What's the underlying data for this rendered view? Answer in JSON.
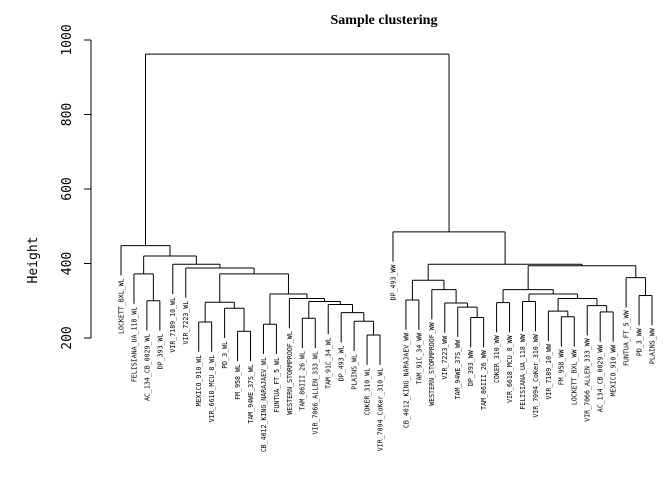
{
  "chart_data": {
    "type": "dendrogram",
    "title": "Sample clustering",
    "xlabel": "",
    "ylabel": "Height",
    "ylim": [
      200,
      1000
    ],
    "y_ticks": [
      200,
      400,
      600,
      800,
      1000
    ],
    "leaves": [
      "LOCKETT_BXL_WL",
      "FELISIANA_UA_118_WL",
      "AC_134_CB_0029_WL",
      "DP_393_WL",
      "VIR_7189_10_WL",
      "VIR_7223_WL",
      "MEXICO_910_WL",
      "VIR_6618_MCU_8_WL",
      "PD_3_WL",
      "FM_958_WL",
      "TAM_94WE_37S_WL",
      "CB_4012_KING_NARAJAEV_WL",
      "FUNTUA_FT_5_WL",
      "WESTERN_STORMPROOF_WL",
      "TAM_86III_26_WL",
      "VIR_7066_ALLEN_333_WL",
      "TAM_91C_34_WL",
      "DP_493_WL",
      "PLAINS_WL",
      "COKER_310_WL",
      "VIR_7094_CoKer_310_WL",
      "DP_493_WW",
      "CB_4012_KING_NARAJAEV_WW",
      "TAM_91C_34_WW",
      "WESTERN_STORMPROOF_WW",
      "VIR_7223_WW",
      "TAM_94WE_37S_WW",
      "DP_393_WW",
      "TAM_86III_26_WW",
      "COKER_310_WW",
      "VIR_6618_MCU_8_WW",
      "FELISIANA_UA_118_WW",
      "VIR_7094_CoKer_310_WW",
      "VIR_7189_10_WW",
      "FM_958_WW",
      "LOCKETT_BXL_WW",
      "VIR_7066_ALLEN_333_WW",
      "AC_134_CB_0029_WW",
      "MEXICO_910_WW",
      "FUNTUA_FT_5_WW",
      "PD_3_WW",
      "PLAINS_WW"
    ],
    "merges": [
      {
        "a": "VIR_7094_CoKer_310_WL",
        "b": "COKER_310_WL",
        "height": 208
      },
      {
        "a": "m1",
        "b": "PLAINS_WL",
        "height": 245
      },
      {
        "a": "m2",
        "b": "DP_493_WL",
        "height": 268
      },
      {
        "a": "m3",
        "b": "TAM_91C_34_WL",
        "height": 290
      },
      {
        "a": "VIR_7066_ALLEN_333_WL",
        "b": "TAM_86III_26_WL",
        "height": 253
      },
      {
        "a": "m5",
        "b": "m4",
        "height": 298
      },
      {
        "a": "m6",
        "b": "WESTERN_STORMPROOF_WL",
        "height": 306
      },
      {
        "a": "FUNTUA_FT_5_WL",
        "b": "CB_4012_KING_NARAJAEV_WL",
        "height": 237
      },
      {
        "a": "m8",
        "b": "m7",
        "height": 318
      },
      {
        "a": "TAM_94WE_37S_WL",
        "b": "FM_958_WL",
        "height": 218
      },
      {
        "a": "m10",
        "b": "PD_3_WL",
        "height": 280
      },
      {
        "a": "MEXICO_910_WL",
        "b": "VIR_6618_MCU_8_WL",
        "height": 243
      },
      {
        "a": "m12",
        "b": "m11",
        "height": 296
      },
      {
        "a": "m13",
        "b": "m9",
        "height": 372
      },
      {
        "a": "m14",
        "b": "VIR_7223_WL",
        "height": 388
      },
      {
        "a": "m15",
        "b": "VIR_7189_10_WL",
        "height": 398
      },
      {
        "a": "AC_134_CB_0029_WL",
        "b": "DP_393_WL",
        "height": 300
      },
      {
        "a": "m17",
        "b": "FELISIANA_UA_118_WL",
        "height": 372
      },
      {
        "a": "m18",
        "b": "m16",
        "height": 420
      },
      {
        "a": "m19",
        "b": "LOCKETT_BXL_WL",
        "height": 448
      },
      {
        "a": "TAM_91C_34_WW",
        "b": "CB_4012_KING_NARAJAEV_WW",
        "height": 302
      },
      {
        "a": "TAM_86III_26_WW",
        "b": "DP_393_WW",
        "height": 255
      },
      {
        "a": "m22",
        "b": "TAM_94WE_37S_WW",
        "height": 283
      },
      {
        "a": "m23",
        "b": "VIR_7223_WW",
        "height": 294
      },
      {
        "a": "m24",
        "b": "WESTERN_STORMPROOF_WW",
        "height": 330
      },
      {
        "a": "m25",
        "b": "m21",
        "height": 355
      },
      {
        "a": "COKER_310_WW",
        "b": "VIR_6618_MCU_8_WW",
        "height": 295
      },
      {
        "a": "FELISIANA_UA_118_WW",
        "b": "VIR_7094_CoKer_310_WW",
        "height": 298
      },
      {
        "a": "LOCKETT_BXL_WW",
        "b": "FM_958_WW",
        "height": 257
      },
      {
        "a": "m29",
        "b": "VIR_7189_10_WW",
        "height": 272
      },
      {
        "a": "MEXICO_910_WW",
        "b": "AC_134_CB_0029_WW",
        "height": 270
      },
      {
        "a": "m31",
        "b": "VIR_7066_ALLEN_333_WW",
        "height": 287
      },
      {
        "a": "m30",
        "b": "m32",
        "height": 306
      },
      {
        "a": "m33",
        "b": "m28",
        "height": 318
      },
      {
        "a": "m34",
        "b": "m27",
        "height": 330
      },
      {
        "a": "PLAINS_WW",
        "b": "PD_3_WW",
        "height": 314
      },
      {
        "a": "m36",
        "b": "FUNTUA_FT_5_WW",
        "height": 362
      },
      {
        "a": "m37",
        "b": "m35",
        "height": 394
      },
      {
        "a": "m26",
        "b": "m38",
        "height": 398
      },
      {
        "a": "m39",
        "b": "DP_493_WW",
        "height": 485
      },
      {
        "a": "m20",
        "b": "m40",
        "height": 962
      }
    ]
  }
}
